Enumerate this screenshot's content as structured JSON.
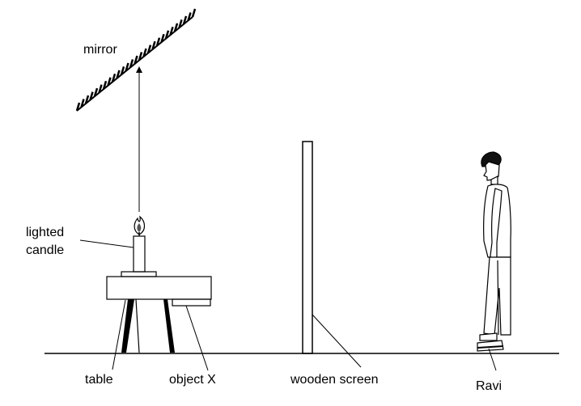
{
  "labels": {
    "mirror": "mirror",
    "candle_line1": "lighted",
    "candle_line2": "candle",
    "table": "table",
    "object_x": "object X",
    "screen": "wooden screen",
    "person": "Ravi"
  },
  "colors": {
    "ink": "#000000",
    "background": "#ffffff"
  }
}
